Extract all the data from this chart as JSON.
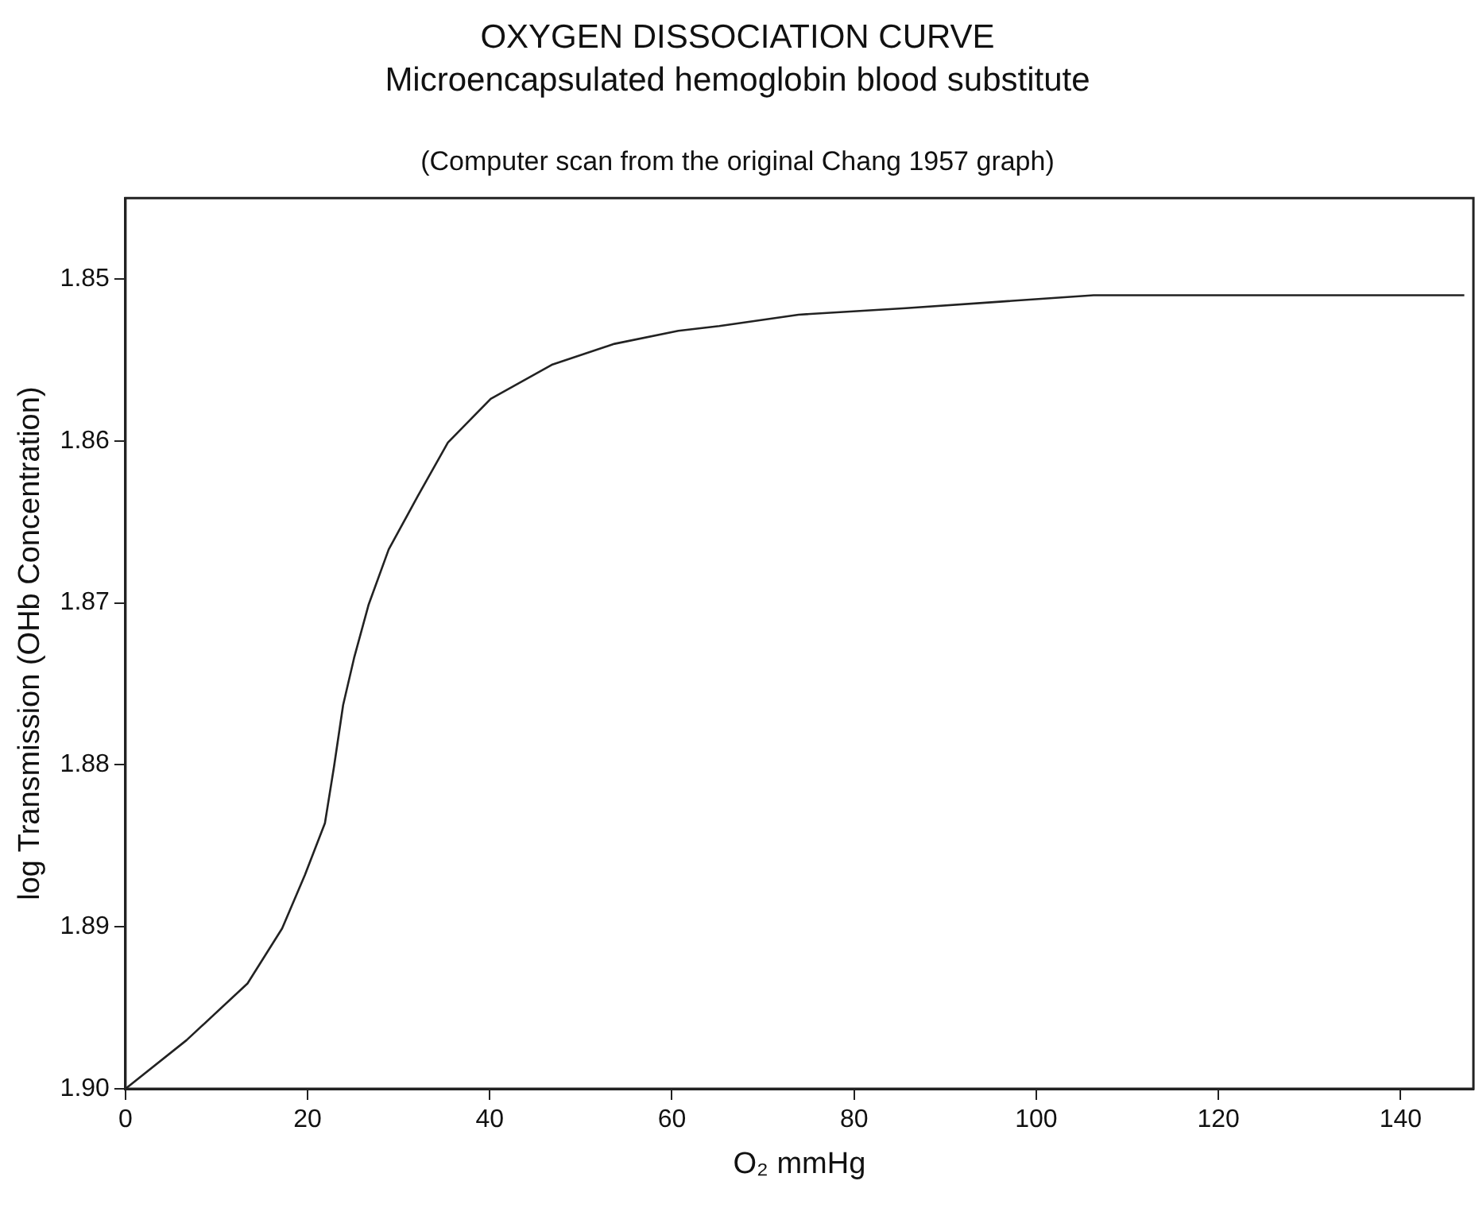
{
  "chart_data": {
    "type": "line",
    "title": "OXYGEN DISSOCIATION CURVE",
    "subtitle": "Microencapsulated hemoglobin blood substitute",
    "annotations": [
      "(Computer scan from the original Chang 1957 graph)"
    ],
    "xlabel": "O₂ mmHg",
    "ylabel": "log Transmission (OHb Concentration)",
    "x": [
      0,
      6.7,
      13.4,
      17.2,
      19.7,
      21.9,
      22.9,
      23.9,
      25.1,
      26.7,
      28.9,
      32.1,
      35.4,
      40.1,
      46.8,
      53.7,
      60.7,
      65.2,
      73.9,
      85.7,
      96.0,
      106.3,
      147.0
    ],
    "series": [
      {
        "color": "#222222",
        "values": [
          1.9,
          1.897,
          1.8935,
          1.8901,
          1.8868,
          1.8836,
          1.8801,
          1.8763,
          1.8734,
          1.8701,
          1.8667,
          1.8634,
          1.8601,
          1.8574,
          1.8553,
          1.854,
          1.8532,
          1.8529,
          1.8522,
          1.8518,
          1.8514,
          1.851,
          1.851
        ]
      }
    ],
    "xlim": [
      0,
      148
    ],
    "xticks": [
      0,
      20,
      40,
      60,
      80,
      100,
      120,
      140
    ],
    "ylim": [
      1.9,
      1.845
    ],
    "yticks": [
      {
        "value": 1.85,
        "label": "1.85"
      },
      {
        "value": 1.86,
        "label": "1.86"
      },
      {
        "value": 1.87,
        "label": "1.87"
      },
      {
        "value": 1.88,
        "label": "1.88"
      },
      {
        "value": 1.89,
        "label": "1.89"
      },
      {
        "value": 1.9,
        "label": "1.90"
      }
    ],
    "legend": false,
    "marker": "none",
    "line_style": "solid"
  }
}
